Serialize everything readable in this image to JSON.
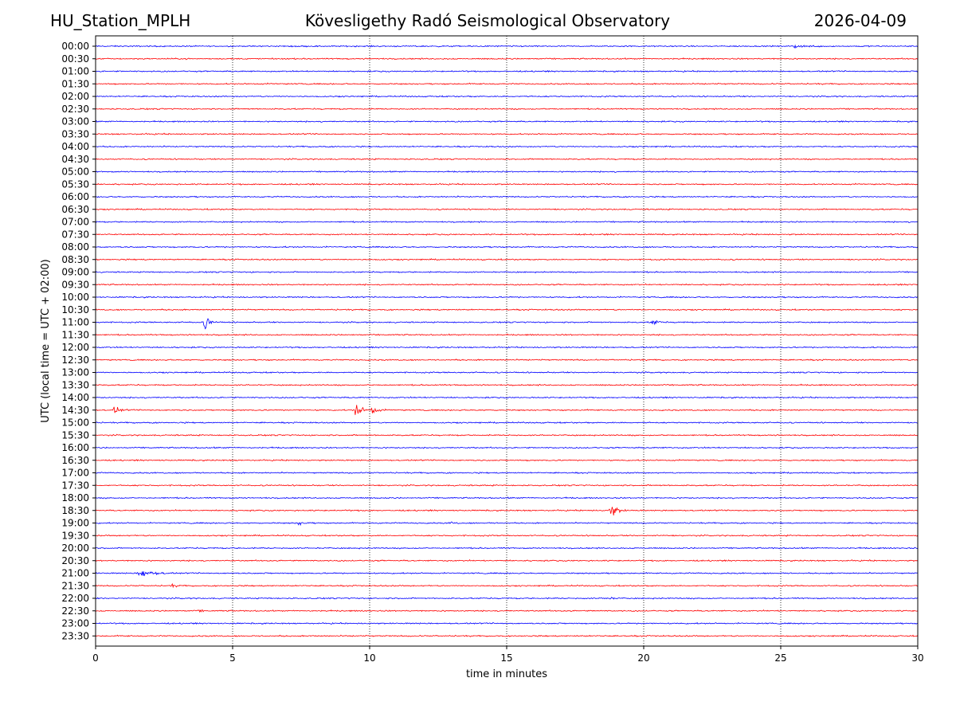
{
  "header": {
    "station": "HU_Station_MPLH",
    "title": "Kövesligethy Radó Seismological Observatory",
    "date": "2026-04-09"
  },
  "chart_data": {
    "type": "line",
    "title": "Kövesligethy Radó Seismological Observatory",
    "xlabel": "time in minutes",
    "ylabel": "UTC (local time = UTC + 02:00)",
    "xlim": [
      0,
      30
    ],
    "xticks": [
      0,
      5,
      10,
      15,
      20,
      25,
      30
    ],
    "vertical_gridlines": [
      5,
      10,
      15,
      20,
      25
    ],
    "trace_colors": [
      "#0000ff",
      "#ff0000"
    ],
    "row_labels": [
      "00:00",
      "00:30",
      "01:00",
      "01:30",
      "02:00",
      "02:30",
      "03:00",
      "03:30",
      "04:00",
      "04:30",
      "05:00",
      "05:30",
      "06:00",
      "06:30",
      "07:00",
      "07:30",
      "08:00",
      "08:30",
      "09:00",
      "09:30",
      "10:00",
      "10:30",
      "11:00",
      "11:30",
      "12:00",
      "12:30",
      "13:00",
      "13:30",
      "14:00",
      "14:30",
      "15:00",
      "15:30",
      "16:00",
      "16:30",
      "17:00",
      "17:30",
      "18:00",
      "18:30",
      "19:00",
      "19:30",
      "20:00",
      "20:30",
      "21:00",
      "21:30",
      "22:00",
      "22:30",
      "23:00",
      "23:30"
    ],
    "background_noise_amplitude": 0.12,
    "events": [
      {
        "row": "00:00",
        "minute": 25.5,
        "amplitude": 0.25,
        "duration": 1.5
      },
      {
        "row": "11:00",
        "minute": 4.0,
        "amplitude": 1.5,
        "duration": 0.5
      },
      {
        "row": "11:00",
        "minute": 20.3,
        "amplitude": 0.8,
        "duration": 0.5
      },
      {
        "row": "14:30",
        "minute": 0.7,
        "amplitude": 0.8,
        "duration": 0.5
      },
      {
        "row": "14:30",
        "minute": 9.5,
        "amplitude": 1.9,
        "duration": 0.5
      },
      {
        "row": "14:30",
        "minute": 10.1,
        "amplitude": 0.9,
        "duration": 0.5
      },
      {
        "row": "18:30",
        "minute": 18.8,
        "amplitude": 1.7,
        "duration": 0.6
      },
      {
        "row": "19:00",
        "minute": 7.4,
        "amplitude": 0.35,
        "duration": 0.6
      },
      {
        "row": "19:00",
        "minute": 13.0,
        "amplitude": 0.3,
        "duration": 0.3
      },
      {
        "row": "21:00",
        "minute": 1.6,
        "amplitude": 1.0,
        "duration": 1.2
      },
      {
        "row": "21:30",
        "minute": 2.8,
        "amplitude": 0.2,
        "duration": 0.6
      },
      {
        "row": "22:00",
        "minute": 18.6,
        "amplitude": 0.35,
        "duration": 0.7
      },
      {
        "row": "22:30",
        "minute": 3.8,
        "amplitude": 0.3,
        "duration": 0.2
      }
    ]
  }
}
